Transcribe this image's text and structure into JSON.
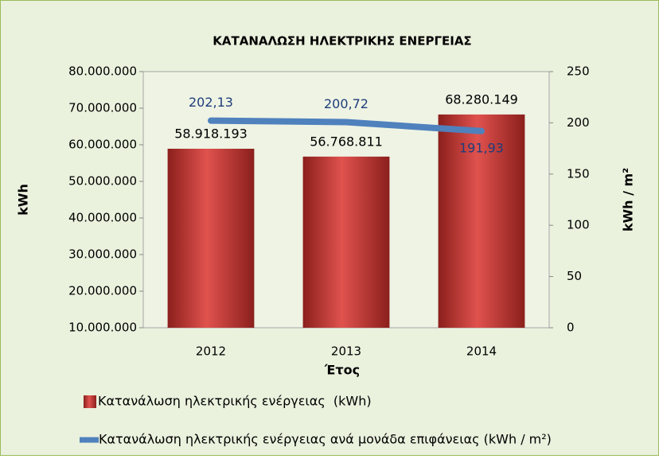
{
  "chart_data": {
    "type": "bar",
    "title": "ΚΑΤΑΝΑΛΩΣΗ ΗΛΕΚΤΡΙΚΗΣ ΕΝΕΡΓΕΙΑΣ",
    "x_label": "Έτος",
    "y_label": "kWh",
    "y2_label": "kWh / m²",
    "categories": [
      "2012",
      "2013",
      "2014"
    ],
    "series": [
      {
        "name": "Κατανάλωση ηλεκτρικής ενέργειας  (kWh)",
        "type": "bar",
        "color": "#c0504d",
        "values": [
          58918193,
          56768811,
          68280149
        ],
        "value_labels": [
          "58.918.193",
          "56.768.811",
          "68.280.149"
        ]
      },
      {
        "name": "Κατανάλωση ηλεκτρικής ενέργειας ανά μονάδα επιφάνειας (kWh / m²)",
        "type": "line",
        "axis": "y2",
        "color": "#4f81bd",
        "values": [
          202.13,
          200.72,
          191.93
        ],
        "value_labels": [
          "202,13",
          "200,72",
          "191,93"
        ]
      }
    ],
    "ylim": [
      10000000,
      80000000
    ],
    "yticks": [
      {
        "value": 10000000,
        "label": "10.000.000"
      },
      {
        "value": 20000000,
        "label": "20.000.000"
      },
      {
        "value": 30000000,
        "label": "30.000.000"
      },
      {
        "value": 40000000,
        "label": "40.000.000"
      },
      {
        "value": 50000000,
        "label": "50.000.000"
      },
      {
        "value": 60000000,
        "label": "60.000.000"
      },
      {
        "value": 70000000,
        "label": "70.000.000"
      },
      {
        "value": 80000000,
        "label": "80.000.000"
      }
    ],
    "y2lim": [
      0,
      250
    ],
    "y2ticks": [
      0,
      50,
      100,
      150,
      200,
      250
    ],
    "legend": "bottom"
  }
}
